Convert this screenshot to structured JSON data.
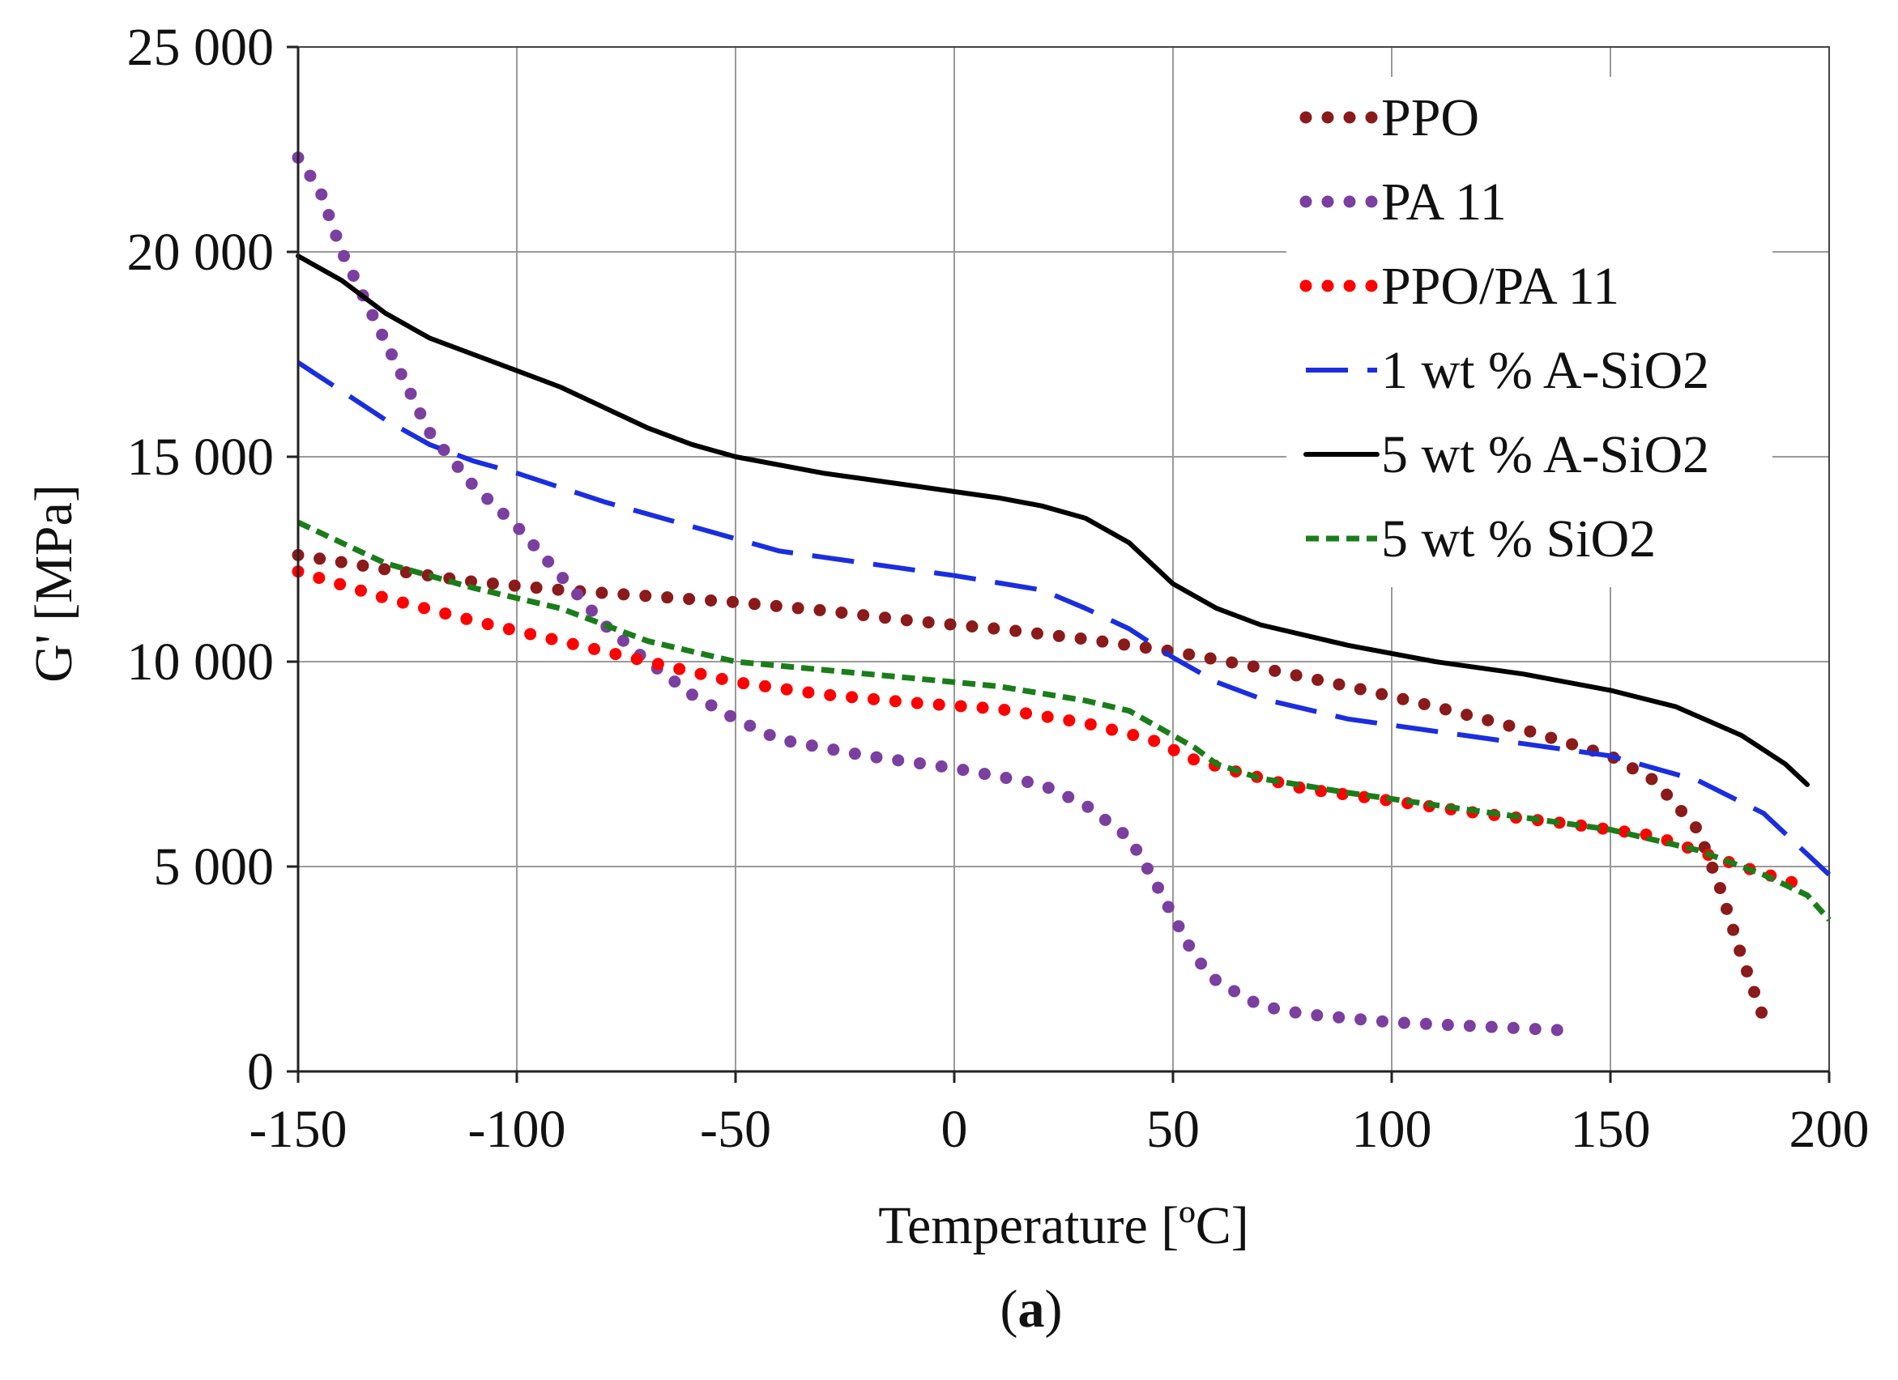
{
  "chart_data": {
    "type": "line",
    "xlabel": "Temperature [ºC]",
    "ylabel": "G' [MPa]",
    "panel_label": "a",
    "xlim": [
      -150,
      200
    ],
    "ylim": [
      0,
      25000
    ],
    "x_ticks": [
      -150,
      -100,
      -50,
      0,
      50,
      100,
      150,
      200
    ],
    "x_tick_labels": [
      "-150",
      "-100",
      "-50",
      "0",
      "50",
      "100",
      "150",
      "200"
    ],
    "y_ticks": [
      0,
      5000,
      10000,
      15000,
      20000,
      25000
    ],
    "y_tick_labels": [
      "0",
      "5 000",
      "10 000",
      "15 000",
      "20 000",
      "25 000"
    ],
    "grid": true,
    "legend_position": "top-right",
    "series": [
      {
        "name": "PPO",
        "color": "#8b1a1a",
        "style": "dotted",
        "x": [
          -150,
          -130,
          -110,
          -90,
          -70,
          -50,
          -30,
          -10,
          10,
          30,
          50,
          70,
          90,
          110,
          130,
          150,
          160,
          170,
          175,
          180,
          185
        ],
        "y": [
          12600,
          12250,
          11950,
          11750,
          11600,
          11450,
          11250,
          11000,
          10800,
          10550,
          10250,
          9850,
          9400,
          8900,
          8350,
          7700,
          7100,
          5900,
          4500,
          2800,
          1300
        ]
      },
      {
        "name": "PA 11",
        "color": "#7b3fa0",
        "style": "dotted",
        "x": [
          -150,
          -145,
          -140,
          -130,
          -120,
          -110,
          -100,
          -90,
          -80,
          -70,
          -60,
          -50,
          -40,
          -20,
          0,
          20,
          30,
          40,
          45,
          50,
          55,
          60,
          70,
          80,
          100,
          120,
          140
        ],
        "y": [
          22300,
          21500,
          20000,
          17800,
          15600,
          14300,
          13300,
          12100,
          10900,
          10000,
          9200,
          8600,
          8100,
          7700,
          7400,
          7000,
          6500,
          5700,
          4800,
          3800,
          2800,
          2200,
          1600,
          1400,
          1200,
          1100,
          1000
        ]
      },
      {
        "name": "PPO/PA 11",
        "color": "#ff0000",
        "style": "dotted",
        "x": [
          -150,
          -130,
          -110,
          -90,
          -70,
          -50,
          -30,
          -10,
          10,
          30,
          45,
          55,
          65,
          80,
          100,
          120,
          140,
          160,
          180,
          195
        ],
        "y": [
          12200,
          11550,
          11000,
          10500,
          10000,
          9500,
          9200,
          9000,
          8850,
          8500,
          8100,
          7600,
          7300,
          6900,
          6600,
          6300,
          6050,
          5750,
          5000,
          4500
        ]
      },
      {
        "name": "1 wt % A-SiO2",
        "color": "#1a2ee0",
        "style": "dashed",
        "x": [
          -150,
          -140,
          -130,
          -120,
          -110,
          -100,
          -80,
          -60,
          -40,
          -20,
          0,
          20,
          30,
          40,
          50,
          60,
          70,
          90,
          110,
          130,
          150,
          170,
          185,
          195,
          200
        ],
        "y": [
          17300,
          16600,
          15900,
          15300,
          14900,
          14600,
          13900,
          13300,
          12700,
          12400,
          12100,
          11750,
          11300,
          10800,
          10100,
          9500,
          9100,
          8600,
          8300,
          8000,
          7700,
          7100,
          6300,
          5300,
          4800
        ]
      },
      {
        "name": "5 wt % A-SiO2",
        "color": "#000000",
        "style": "solid",
        "x": [
          -150,
          -140,
          -130,
          -120,
          -110,
          -100,
          -90,
          -80,
          -70,
          -60,
          -50,
          -30,
          -10,
          0,
          10,
          20,
          30,
          40,
          45,
          50,
          60,
          70,
          90,
          110,
          130,
          150,
          165,
          180,
          190,
          195
        ],
        "y": [
          19900,
          19300,
          18500,
          17900,
          17500,
          17100,
          16700,
          16200,
          15700,
          15300,
          15000,
          14600,
          14300,
          14150,
          14000,
          13800,
          13500,
          12900,
          12400,
          11900,
          11300,
          10900,
          10400,
          10000,
          9700,
          9300,
          8900,
          8200,
          7500,
          7000
        ]
      },
      {
        "name": "5 wt % SiO2",
        "color": "#1a7d1a",
        "style": "dashed",
        "x": [
          -150,
          -130,
          -110,
          -90,
          -70,
          -50,
          -30,
          -10,
          10,
          30,
          40,
          45,
          50,
          55,
          60,
          70,
          90,
          110,
          130,
          150,
          170,
          185,
          195,
          200
        ],
        "y": [
          13400,
          12400,
          11800,
          11300,
          10500,
          10000,
          9800,
          9600,
          9400,
          9050,
          8800,
          8500,
          8200,
          7900,
          7500,
          7150,
          6800,
          6500,
          6200,
          5900,
          5400,
          4800,
          4300,
          3700
        ]
      }
    ]
  }
}
